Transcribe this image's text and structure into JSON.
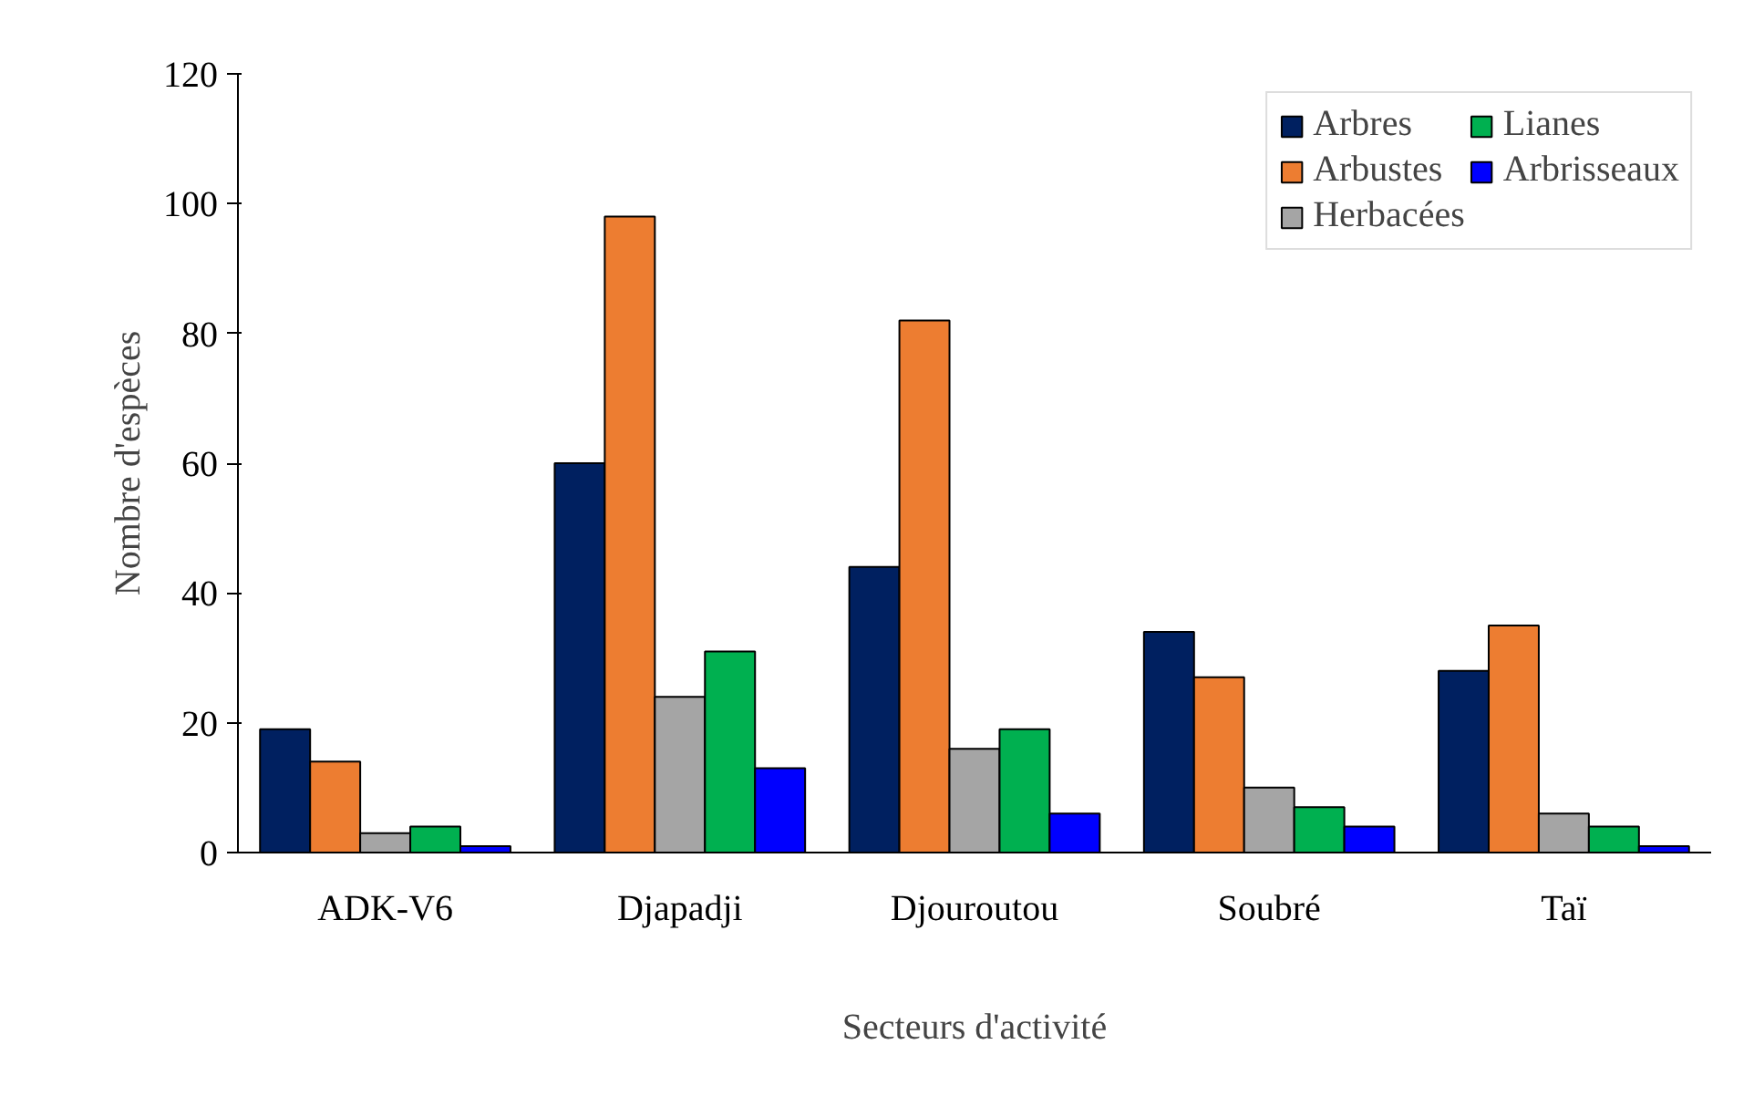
{
  "chart_data": {
    "type": "bar",
    "xlabel": "Secteurs d'activité",
    "ylabel": "Nombre d'espèces",
    "categories": [
      "ADK-V6",
      "Djapadji",
      "Djouroutou",
      "Soubré",
      "Taï"
    ],
    "series": [
      {
        "name": "Arbres",
        "color": "#002060",
        "values": [
          19,
          60,
          44,
          34,
          28
        ]
      },
      {
        "name": "Arbustes",
        "color": "#ed7d31",
        "values": [
          14,
          98,
          82,
          27,
          35
        ]
      },
      {
        "name": "Herbacées",
        "color": "#a5a5a5",
        "values": [
          3,
          24,
          16,
          10,
          6
        ]
      },
      {
        "name": "Lianes",
        "color": "#00b050",
        "values": [
          4,
          31,
          19,
          7,
          4
        ]
      },
      {
        "name": "Arbrisseaux",
        "color": "#0000ff",
        "values": [
          1,
          13,
          6,
          4,
          1
        ]
      }
    ],
    "ylim": [
      0,
      120
    ],
    "yticks": [
      0,
      20,
      40,
      60,
      80,
      100,
      120
    ],
    "grid": false,
    "legend": "top right"
  }
}
